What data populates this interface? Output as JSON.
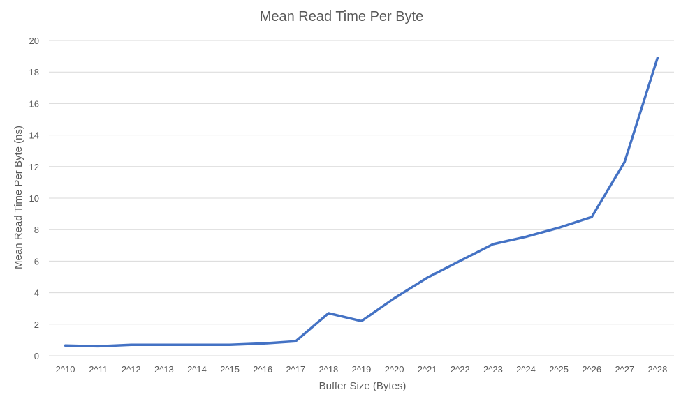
{
  "chart_data": {
    "type": "line",
    "title": "Mean Read Time Per Byte",
    "xlabel": "Buffer Size (Bytes)",
    "ylabel": "Mean Read Time Per Byte (ns)",
    "categories": [
      "2^10",
      "2^11",
      "2^12",
      "2^13",
      "2^14",
      "2^15",
      "2^16",
      "2^17",
      "2^18",
      "2^19",
      "2^20",
      "2^21",
      "2^22",
      "2^23",
      "2^24",
      "2^25",
      "2^26",
      "2^27",
      "2^28"
    ],
    "series": [
      {
        "color": "#4472c4",
        "values": [
          0.65,
          0.6,
          0.7,
          0.7,
          0.7,
          0.7,
          0.78,
          0.92,
          2.7,
          2.2,
          3.65,
          4.95,
          6.02,
          7.08,
          7.55,
          8.12,
          8.8,
          12.3,
          18.9
        ]
      }
    ],
    "ylim": [
      0,
      20
    ],
    "yticks": [
      0,
      2,
      4,
      6,
      8,
      10,
      12,
      14,
      16,
      18,
      20
    ],
    "grid": true,
    "legend": "none"
  }
}
